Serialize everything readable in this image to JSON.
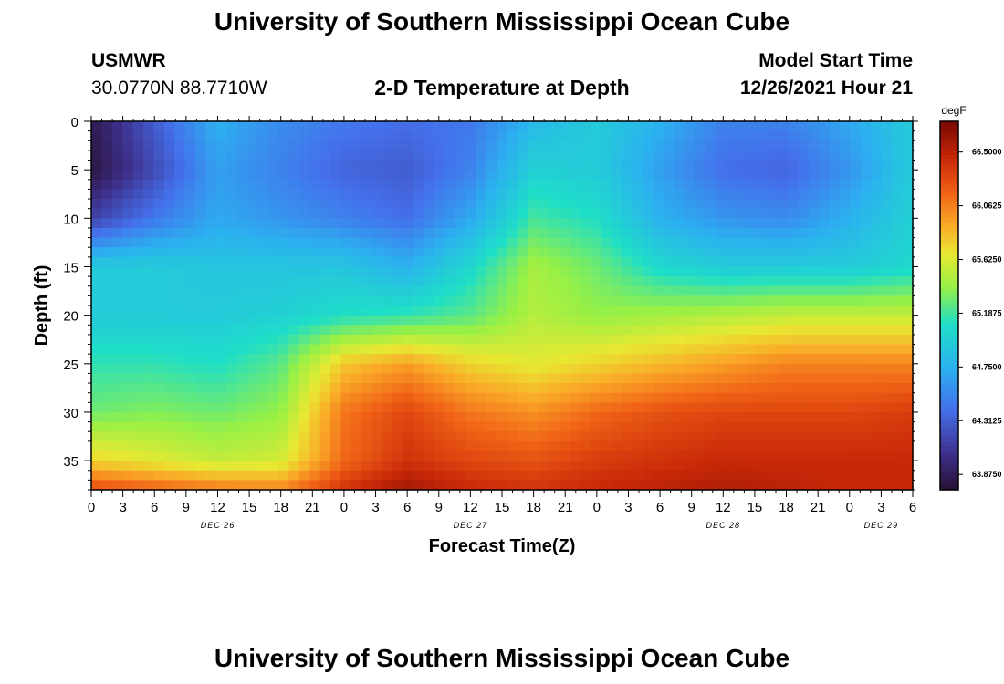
{
  "page": {
    "title_top": "University of Southern Mississippi Ocean Cube",
    "title_bottom": "University of Southern Mississippi Ocean Cube",
    "station_id": "USMWR",
    "station_coords": "30.0770N  88.7710W",
    "subtitle": "2-D Temperature at Depth",
    "model_label": "Model Start Time",
    "model_time": "12/26/2021 Hour 21"
  },
  "chart_data": {
    "type": "heatmap",
    "title": "2-D Temperature at Depth",
    "xlabel": "Forecast Time(Z)",
    "ylabel": "Depth (ft)",
    "x_hours_start": 0,
    "x_hours_end": 78,
    "x_tick_labels": [
      "0",
      "3",
      "6",
      "9",
      "12",
      "15",
      "18",
      "21",
      "0",
      "3",
      "6",
      "9",
      "12",
      "15",
      "18",
      "21",
      "0",
      "3",
      "6",
      "9",
      "12",
      "15",
      "18",
      "21",
      "0",
      "3",
      "6"
    ],
    "day_labels": [
      {
        "label": "DEC 26",
        "hour": 12
      },
      {
        "label": "DEC 27",
        "hour": 36
      },
      {
        "label": "DEC 28",
        "hour": 60
      },
      {
        "label": "DEC 29",
        "hour": 75
      }
    ],
    "ylim": [
      0,
      38
    ],
    "y_ticks": [
      0,
      5,
      10,
      15,
      20,
      25,
      30,
      35
    ],
    "colorbar": {
      "unit": "degF",
      "min": 63.75,
      "max": 66.75,
      "labels": [
        "66.5000",
        "66.0625",
        "65.6250",
        "65.1875",
        "64.7500",
        "64.3125",
        "63.8750"
      ],
      "label_values": [
        66.5,
        66.0625,
        65.625,
        65.1875,
        64.75,
        64.3125,
        63.875
      ]
    },
    "grid_hours": [
      0,
      6,
      12,
      18,
      24,
      30,
      36,
      42,
      48,
      54,
      60,
      66,
      72,
      78
    ],
    "grid_depths": [
      0,
      5,
      10,
      15,
      20,
      25,
      30,
      35,
      38
    ],
    "temperature_grid": [
      [
        63.85,
        64.3,
        64.75,
        64.55,
        64.45,
        64.4,
        64.45,
        64.8,
        64.95,
        64.75,
        64.5,
        64.5,
        64.7,
        64.95
      ],
      [
        63.8,
        64.2,
        64.65,
        64.5,
        64.35,
        64.3,
        64.5,
        65.0,
        64.95,
        64.65,
        64.4,
        64.35,
        64.6,
        64.95
      ],
      [
        64.15,
        64.45,
        64.7,
        64.6,
        64.5,
        64.4,
        64.7,
        65.2,
        65.1,
        64.75,
        64.6,
        64.55,
        64.75,
        65.0
      ],
      [
        64.95,
        64.95,
        64.9,
        64.9,
        64.9,
        64.75,
        65.05,
        65.45,
        65.3,
        65.05,
        64.95,
        64.95,
        64.95,
        65.05
      ],
      [
        64.95,
        64.95,
        64.95,
        65.0,
        65.1,
        65.15,
        65.25,
        65.5,
        65.4,
        65.45,
        65.5,
        65.55,
        65.55,
        65.55
      ],
      [
        65.15,
        65.15,
        65.1,
        65.25,
        65.8,
        65.95,
        65.75,
        65.65,
        65.75,
        65.85,
        65.95,
        66.05,
        66.05,
        66.05
      ],
      [
        65.3,
        65.35,
        65.3,
        65.4,
        66.1,
        66.3,
        66.1,
        66.0,
        66.15,
        66.25,
        66.3,
        66.3,
        66.3,
        66.35
      ],
      [
        65.75,
        65.65,
        65.55,
        65.6,
        66.15,
        66.4,
        66.3,
        66.25,
        66.35,
        66.4,
        66.45,
        66.45,
        66.45,
        66.45
      ],
      [
        66.3,
        66.2,
        66.1,
        66.05,
        66.4,
        66.6,
        66.45,
        66.4,
        66.45,
        66.5,
        66.55,
        66.5,
        66.45,
        66.45
      ]
    ]
  }
}
